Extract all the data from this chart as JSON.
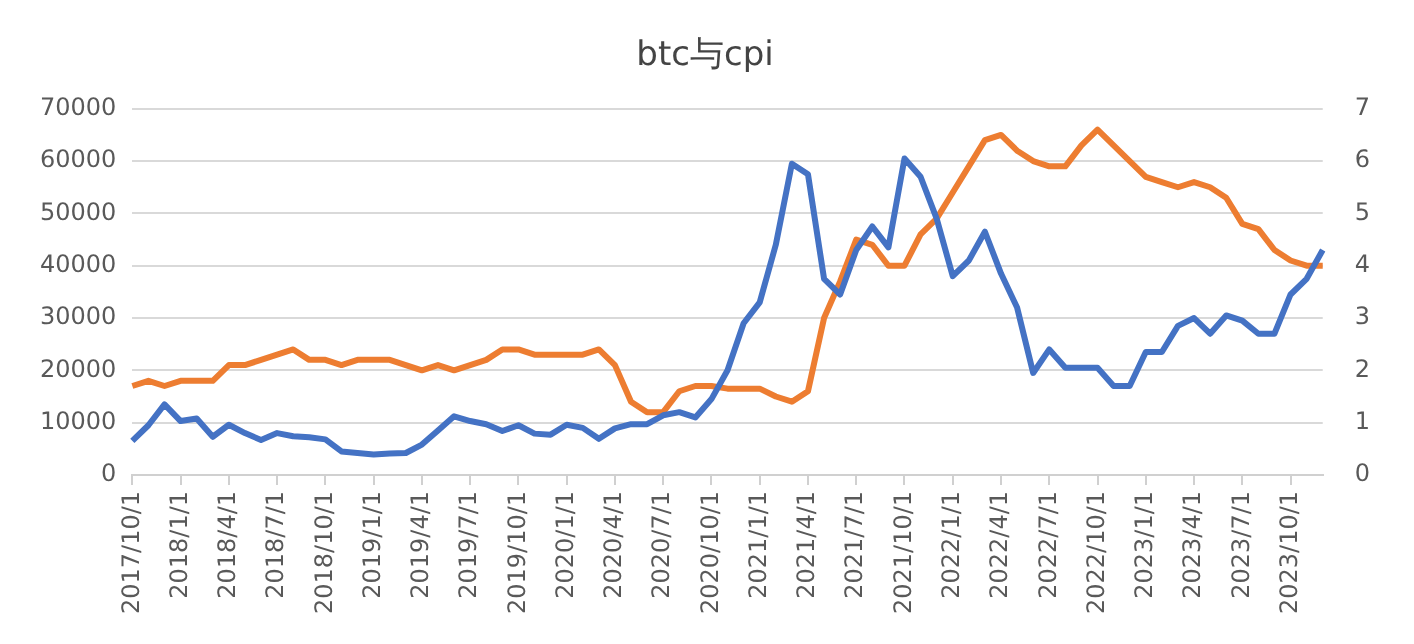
{
  "chart_data": {
    "type": "line",
    "title": "btc与cpi",
    "categories": [
      "2017/10/1",
      null,
      null,
      "2018/1/1",
      null,
      null,
      "2018/4/1",
      null,
      null,
      "2018/7/1",
      null,
      null,
      "2018/10/1",
      null,
      null,
      "2019/1/1",
      null,
      null,
      "2019/4/1",
      null,
      null,
      "2019/7/1",
      null,
      null,
      "2019/10/1",
      null,
      null,
      "2020/1/1",
      null,
      null,
      "2020/4/1",
      null,
      null,
      "2020/7/1",
      null,
      null,
      "2020/10/1",
      null,
      null,
      "2021/1/1",
      null,
      null,
      "2021/4/1",
      null,
      null,
      "2021/7/1",
      null,
      null,
      "2021/10/1",
      null,
      null,
      "2022/1/1",
      null,
      null,
      "2022/4/1",
      null,
      null,
      "2022/7/1",
      null,
      null,
      "2022/10/1",
      null,
      null,
      "2023/1/1",
      null,
      null,
      "2023/4/1",
      null,
      null,
      "2023/7/1",
      null,
      null,
      "2023/10/1",
      null,
      null
    ],
    "series": [
      {
        "color": "#4472c4",
        "values": [
          6500,
          9500,
          13500,
          10300,
          10800,
          7300,
          9600,
          8000,
          6700,
          8000,
          7400,
          7200,
          6800,
          4500,
          4200,
          3900,
          4100,
          4200,
          5800,
          8500,
          11200,
          10300,
          9700,
          8400,
          9500,
          7900,
          7700,
          9600,
          9000,
          6900,
          8900,
          9700,
          9700,
          11400,
          12000,
          11000,
          14500,
          20000,
          29000,
          33000,
          44000,
          59500,
          57500,
          37500,
          34500,
          43000,
          47500,
          43500,
          60500,
          57000,
          49000,
          38000,
          41000,
          46500,
          38500,
          32000,
          19500,
          24000,
          20500,
          20500,
          20500,
          17000,
          17000,
          23500,
          23500,
          28500,
          30000,
          27000,
          30500,
          29500,
          27000,
          27000,
          34500,
          37500,
          43000
        ]
      },
      {
        "color": "#ed7d31",
        "axis": "y2",
        "values": [
          1.7,
          1.8,
          1.7,
          1.8,
          1.8,
          1.8,
          2.1,
          2.1,
          2.2,
          2.3,
          2.4,
          2.2,
          2.2,
          2.1,
          2.2,
          2.2,
          2.2,
          2.1,
          2.0,
          2.1,
          2.0,
          2.1,
          2.2,
          2.4,
          2.4,
          2.3,
          2.3,
          2.3,
          2.3,
          2.4,
          2.1,
          1.4,
          1.2,
          1.2,
          1.6,
          1.7,
          1.7,
          1.65,
          1.65,
          1.65,
          1.5,
          1.4,
          1.6,
          3.0,
          3.7,
          4.5,
          4.4,
          4.0,
          4.0,
          4.6,
          4.9,
          5.4,
          5.9,
          6.4,
          6.5,
          6.2,
          6.0,
          5.9,
          5.9,
          6.3,
          6.6,
          6.3,
          6.0,
          5.7,
          5.6,
          5.5,
          5.6,
          5.5,
          5.3,
          4.8,
          4.7,
          4.3,
          4.1,
          4.0,
          4.0
        ]
      }
    ],
    "ylim": [
      0,
      70000
    ],
    "yticks": [
      0,
      10000,
      20000,
      30000,
      40000,
      50000,
      60000,
      70000
    ],
    "y2lim": [
      0,
      7
    ],
    "y2ticks": [
      0,
      1,
      2,
      3,
      4,
      5,
      6,
      7
    ],
    "grid": "y",
    "legend": false
  }
}
